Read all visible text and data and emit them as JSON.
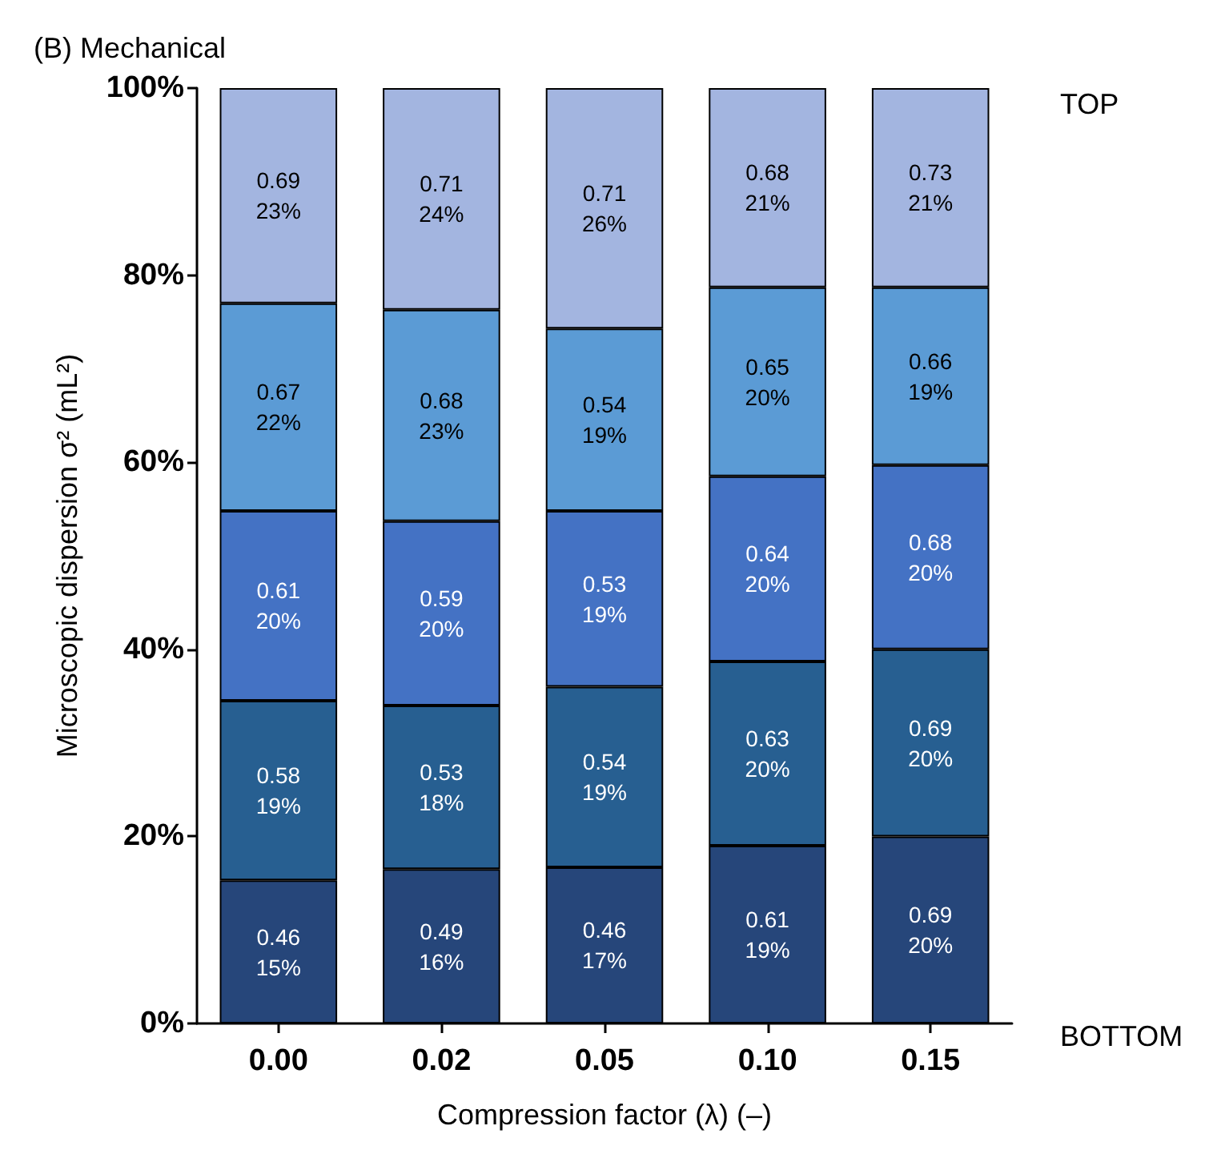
{
  "chart_data": {
    "type": "bar",
    "title": "(B) Mechanical",
    "xlabel": "Compression factor (λ) (–)",
    "ylabel": "Microscopic dispersion σ² (mL²)",
    "categories": [
      "0.00",
      "0.02",
      "0.05",
      "0.10",
      "0.15"
    ],
    "stacked": true,
    "grid": false,
    "ylim": [
      0,
      100
    ],
    "yticks": [
      {
        "value": 0,
        "label": "0%"
      },
      {
        "value": 20,
        "label": "20%"
      },
      {
        "value": 40,
        "label": "40%"
      },
      {
        "value": 60,
        "label": "60%"
      },
      {
        "value": 80,
        "label": "80%"
      },
      {
        "value": 100,
        "label": "100%"
      }
    ],
    "series": [
      {
        "color": "#26467a",
        "values": [
          15.3,
          16.5,
          16.7,
          19,
          20
        ],
        "value_labels": [
          "0.46\n15%",
          "0.49\n16%",
          "0.46\n17%",
          "0.61\n19%",
          "0.69\n20%"
        ]
      },
      {
        "color": "#275f91",
        "values": [
          19.2,
          17.5,
          19.3,
          19.7,
          20
        ],
        "value_labels": [
          "0.58\n19%",
          "0.53\n18%",
          "0.54\n19%",
          "0.63\n20%",
          "0.69\n20%"
        ]
      },
      {
        "color": "#4472c4",
        "values": [
          20.3,
          19.7,
          18.8,
          19.8,
          19.7
        ],
        "value_labels": [
          "0.61\n20%",
          "0.59\n20%",
          "0.53\n19%",
          "0.64\n20%",
          "0.68\n20%"
        ]
      },
      {
        "color": "#5b9bd5",
        "values": [
          22.2,
          22.6,
          19.5,
          20.2,
          19
        ],
        "value_labels": [
          "0.67\n22%",
          "0.68\n23%",
          "0.54\n19%",
          "0.65\n20%",
          "0.66\n19%"
        ]
      },
      {
        "color": "#a3b5e0",
        "values": [
          23,
          23.7,
          25.7,
          21.3,
          21.3
        ],
        "value_labels": [
          "0.69\n23%",
          "0.71\n24%",
          "0.71\n26%",
          "0.68\n21%",
          "0.73\n21%"
        ]
      }
    ],
    "annotations": [
      "TOP",
      "BOTTOM"
    ]
  }
}
